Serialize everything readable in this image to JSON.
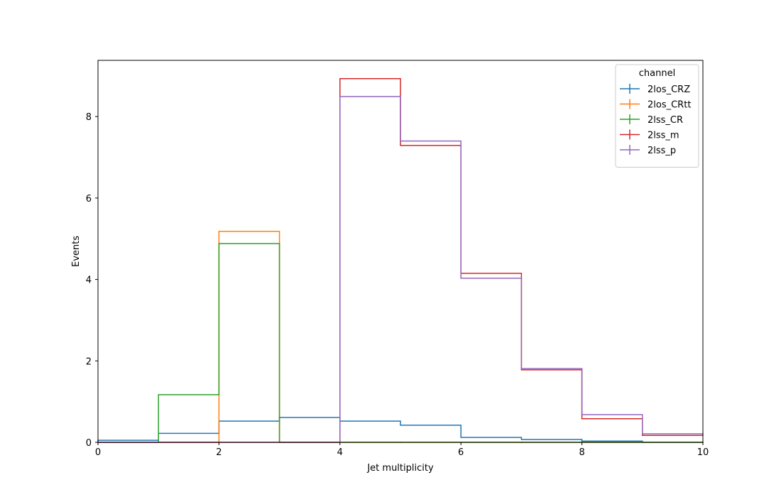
{
  "chart_data": {
    "type": "line",
    "title": "",
    "xlabel": "Jet multiplicity",
    "ylabel": "Events",
    "xlim": [
      0,
      10
    ],
    "ylim": [
      0,
      9.38
    ],
    "xticks": [
      "0",
      "2",
      "4",
      "6",
      "8",
      "10"
    ],
    "yticks": [
      "0",
      "2",
      "4",
      "6",
      "8"
    ],
    "bin_edges": [
      0,
      1,
      2,
      3,
      4,
      5,
      6,
      7,
      8,
      9,
      10
    ],
    "legend": {
      "title": "channel",
      "position": "top-right"
    },
    "grid": false,
    "series": [
      {
        "name": "2los_CRZ",
        "color": "#1f77b4",
        "values": [
          0.05,
          0.22,
          0.52,
          0.61,
          0.52,
          0.42,
          0.12,
          0.07,
          0.03,
          0.0
        ]
      },
      {
        "name": "2los_CRtt",
        "color": "#ff7f0e",
        "values": [
          0.0,
          0.0,
          5.18,
          0.0,
          0.0,
          0.0,
          0.0,
          0.0,
          0.0,
          0.0
        ]
      },
      {
        "name": "2lss_CR",
        "color": "#2ca02c",
        "values": [
          0.0,
          1.17,
          4.88,
          0.0,
          0.0,
          0.0,
          0.0,
          0.0,
          0.0,
          0.0
        ]
      },
      {
        "name": "2lss_m",
        "color": "#d62728",
        "values": [
          0.0,
          0.0,
          0.0,
          0.0,
          8.93,
          7.29,
          4.15,
          1.78,
          0.58,
          0.17
        ]
      },
      {
        "name": "2lss_p",
        "color": "#9467bd",
        "values": [
          0.0,
          0.0,
          0.0,
          0.0,
          8.49,
          7.4,
          4.03,
          1.81,
          0.68,
          0.21
        ]
      }
    ]
  }
}
